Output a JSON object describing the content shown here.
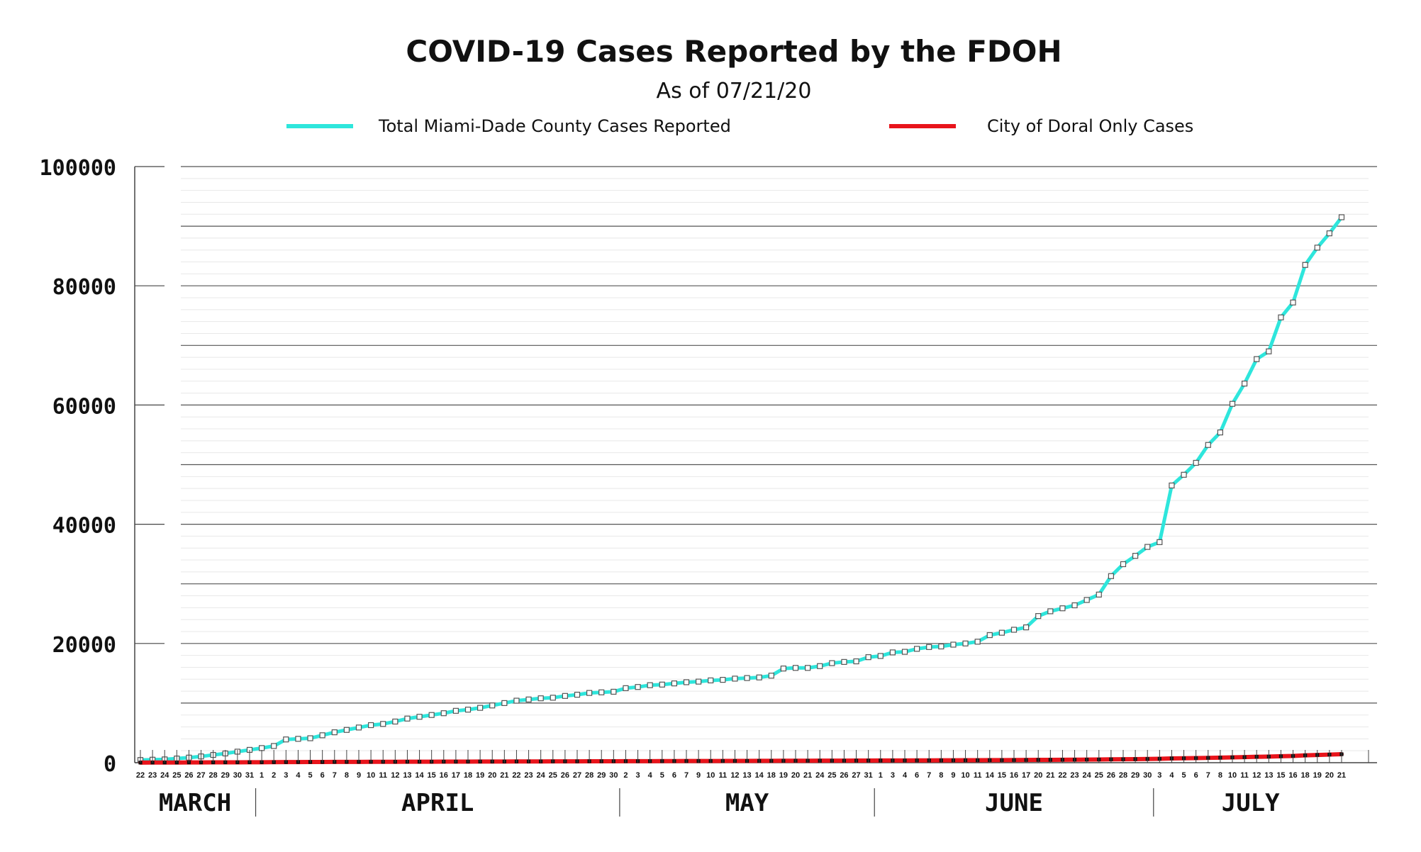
{
  "chart_data": {
    "type": "line",
    "title": "COVID-19 Cases Reported by the FDOH",
    "subtitle": "As of 07/21/20",
    "xlabel": "",
    "ylabel": "",
    "ylim": [
      0,
      100000
    ],
    "yticks": [
      "0",
      "20000",
      "40000",
      "60000",
      "80000",
      "100000"
    ],
    "grid": true,
    "legend_position": "top",
    "x": [
      "22",
      "23",
      "24",
      "25",
      "26",
      "27",
      "28",
      "29",
      "30",
      "31",
      "1",
      "2",
      "3",
      "4",
      "5",
      "6",
      "7",
      "8",
      "9",
      "10",
      "11",
      "12",
      "13",
      "14",
      "15",
      "16",
      "17",
      "18",
      "19",
      "20",
      "21",
      "22",
      "23",
      "24",
      "25",
      "26",
      "27",
      "28",
      "29",
      "30",
      "2",
      "3",
      "4",
      "5",
      "6",
      "7",
      "9",
      "10",
      "11",
      "12",
      "13",
      "14",
      "18",
      "19",
      "20",
      "21",
      "24",
      "25",
      "26",
      "27",
      "31",
      "1",
      "3",
      "4",
      "6",
      "7",
      "8",
      "9",
      "10",
      "11",
      "14",
      "15",
      "16",
      "17",
      "20",
      "21",
      "22",
      "23",
      "24",
      "25",
      "26",
      "28",
      "29",
      "30",
      "3",
      "4",
      "5",
      "6",
      "7",
      "8",
      "10",
      "11",
      "12",
      "13",
      "15",
      "16",
      "18",
      "19",
      "20",
      "21"
    ],
    "months": [
      {
        "name": "MARCH",
        "start": 0,
        "end": 9
      },
      {
        "name": "APRIL",
        "start": 10,
        "end": 39
      },
      {
        "name": "MAY",
        "start": 40,
        "end": 60
      },
      {
        "name": "JUNE",
        "start": 61,
        "end": 83
      },
      {
        "name": "JULY",
        "start": 84,
        "end": 99
      }
    ],
    "series": [
      {
        "name": "Total Miami-Dade County Cases Reported",
        "color": "#2ee6dc",
        "values": [
          450,
          500,
          550,
          700,
          850,
          1050,
          1300,
          1550,
          1850,
          2150,
          2450,
          2800,
          3900,
          4000,
          4100,
          4600,
          5100,
          5500,
          5900,
          6300,
          6500,
          6900,
          7400,
          7700,
          8000,
          8300,
          8700,
          8900,
          9200,
          9600,
          10000,
          10400,
          10600,
          10800,
          10900,
          11200,
          11400,
          11700,
          11800,
          11900,
          12500,
          12700,
          13000,
          13100,
          13300,
          13500,
          13600,
          13800,
          13900,
          14100,
          14200,
          14300,
          14600,
          15800,
          15900,
          15900,
          16200,
          16700,
          16900,
          17000,
          17700,
          17900,
          18500,
          18600,
          19100,
          19400,
          19500,
          19800,
          20000,
          20300,
          21400,
          21800,
          22300,
          22700,
          24600,
          25400,
          25900,
          26400,
          27300,
          28200,
          31300,
          33300,
          34700,
          36200,
          37000,
          46500,
          48300,
          50300,
          53300,
          55400,
          60200,
          63600,
          67700,
          69000,
          74700,
          77200,
          83500,
          86400,
          88800,
          91500
        ]
      },
      {
        "name": "City of Doral Only Cases",
        "color": "#e8141b",
        "values": [
          20,
          25,
          30,
          35,
          40,
          50,
          55,
          60,
          65,
          70,
          80,
          90,
          100,
          110,
          115,
          120,
          130,
          135,
          140,
          145,
          150,
          155,
          160,
          165,
          170,
          175,
          180,
          185,
          190,
          195,
          200,
          205,
          210,
          215,
          220,
          225,
          230,
          235,
          240,
          245,
          250,
          255,
          260,
          265,
          270,
          275,
          280,
          285,
          290,
          295,
          300,
          305,
          310,
          320,
          325,
          330,
          335,
          340,
          345,
          350,
          360,
          365,
          370,
          375,
          380,
          390,
          395,
          400,
          410,
          415,
          425,
          435,
          445,
          455,
          470,
          480,
          490,
          500,
          515,
          530,
          560,
          580,
          600,
          625,
          650,
          720,
          740,
          770,
          810,
          840,
          890,
          930,
          990,
          1020,
          1080,
          1130,
          1230,
          1300,
          1360,
          1420
        ]
      }
    ]
  }
}
